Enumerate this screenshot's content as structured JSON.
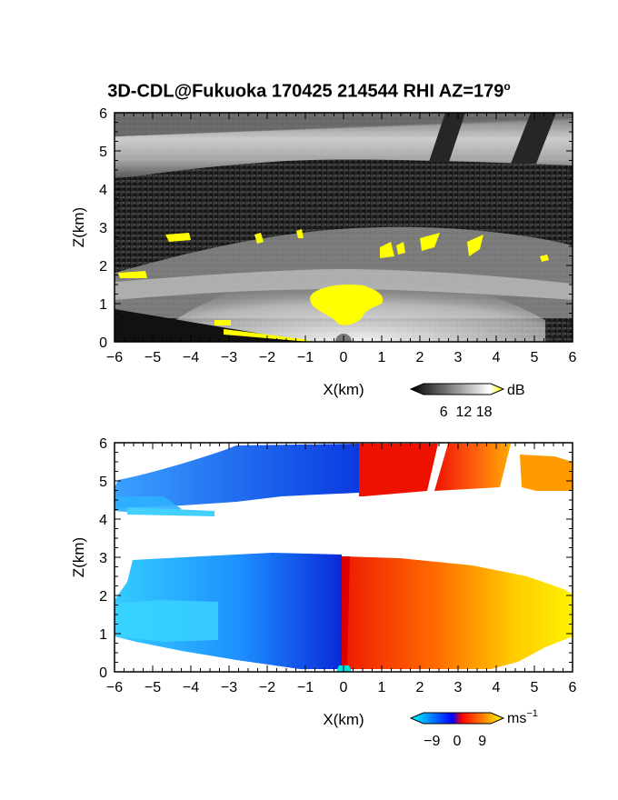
{
  "title": {
    "main": "3D-CDL@Fukuoka 170425 214544 RHI AZ=179",
    "degree": "o"
  },
  "chart_data": [
    {
      "type": "heatmap",
      "panel": "snr",
      "xlabel": "X(km)",
      "ylabel": "Z(km)",
      "xlim": [
        -6,
        6
      ],
      "ylim": [
        0,
        6
      ],
      "xticks": [
        -6,
        -5,
        -4,
        -3,
        -2,
        -1,
        0,
        1,
        2,
        3,
        4,
        5,
        6
      ],
      "yticks": [
        0,
        1,
        2,
        3,
        4,
        5,
        6
      ],
      "colorbar": {
        "unit": "dB",
        "ticks": [
          6,
          12,
          18
        ],
        "range": [
          0,
          20
        ],
        "colors": [
          "#000000",
          "#ffffff",
          "#ffff00"
        ]
      }
    },
    {
      "type": "heatmap",
      "panel": "velocity",
      "xlabel": "X(km)",
      "ylabel": "Z(km)",
      "xlim": [
        -6,
        6
      ],
      "ylim": [
        0,
        6
      ],
      "xticks": [
        -6,
        -5,
        -4,
        -3,
        -2,
        -1,
        0,
        1,
        2,
        3,
        4,
        5,
        6
      ],
      "yticks": [
        0,
        1,
        2,
        3,
        4,
        5,
        6
      ],
      "colorbar": {
        "unit": "ms",
        "unit_exp": "−1",
        "ticks": [
          "−9",
          "0",
          "9"
        ],
        "range": [
          -12,
          12
        ],
        "colors": [
          "#00ffff",
          "#0000ff",
          "#ff0000",
          "#ffff00"
        ]
      }
    }
  ]
}
